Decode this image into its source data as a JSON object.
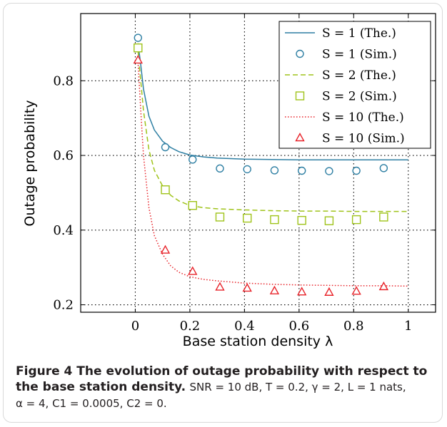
{
  "chart_data": {
    "type": "line",
    "title": "",
    "xlabel": "Base station density λ",
    "ylabel": "Outage probability",
    "xlim": [
      -0.2,
      1.1
    ],
    "ylim": [
      0.18,
      0.98
    ],
    "xticks": [
      "0",
      "0.2",
      "0.4",
      "0.6",
      "0.8",
      "1"
    ],
    "yticks": [
      "0.2",
      "0.4",
      "0.6",
      "0.8"
    ],
    "grid": true,
    "legend_position": "top-right",
    "series": [
      {
        "name": "S = 1 (The.)",
        "kind": "line",
        "style": "solid",
        "color": "#2e7fa3",
        "x": [
          0.01,
          0.02,
          0.03,
          0.05,
          0.07,
          0.1,
          0.13,
          0.16,
          0.2,
          0.25,
          0.3,
          0.4,
          0.5,
          0.6,
          0.7,
          0.8,
          0.9,
          1.0
        ],
        "y": [
          0.9,
          0.843,
          0.778,
          0.705,
          0.668,
          0.638,
          0.621,
          0.61,
          0.601,
          0.596,
          0.593,
          0.59,
          0.589,
          0.588,
          0.588,
          0.588,
          0.588,
          0.588
        ]
      },
      {
        "name": "S = 1 (Sim.)",
        "kind": "marker",
        "marker": "circle",
        "color": "#2e7fa3",
        "x": [
          0.01,
          0.11,
          0.21,
          0.31,
          0.41,
          0.51,
          0.61,
          0.71,
          0.81,
          0.91
        ],
        "y": [
          0.915,
          0.622,
          0.589,
          0.565,
          0.563,
          0.56,
          0.559,
          0.558,
          0.559,
          0.566
        ]
      },
      {
        "name": "S = 2 (The.)",
        "kind": "line",
        "style": "dashed",
        "color": "#9fc31a",
        "x": [
          0.01,
          0.02,
          0.03,
          0.05,
          0.07,
          0.1,
          0.13,
          0.16,
          0.2,
          0.25,
          0.3,
          0.4,
          0.5,
          0.6,
          0.7,
          0.8,
          0.9,
          1.0
        ],
        "y": [
          0.88,
          0.8,
          0.72,
          0.615,
          0.56,
          0.518,
          0.493,
          0.478,
          0.466,
          0.46,
          0.457,
          0.454,
          0.452,
          0.451,
          0.451,
          0.45,
          0.45,
          0.45
        ]
      },
      {
        "name": "S = 2 (Sim.)",
        "kind": "marker",
        "marker": "square",
        "color": "#9fc31a",
        "x": [
          0.01,
          0.11,
          0.21,
          0.31,
          0.41,
          0.51,
          0.61,
          0.71,
          0.81,
          0.91
        ],
        "y": [
          0.888,
          0.508,
          0.466,
          0.435,
          0.432,
          0.428,
          0.426,
          0.425,
          0.428,
          0.435
        ]
      },
      {
        "name": "S = 10 (The.)",
        "kind": "line",
        "style": "dotted",
        "color": "#e8232a",
        "x": [
          0.01,
          0.02,
          0.03,
          0.05,
          0.07,
          0.1,
          0.13,
          0.16,
          0.2,
          0.25,
          0.3,
          0.4,
          0.5,
          0.6,
          0.7,
          0.8,
          0.9,
          1.0
        ],
        "y": [
          0.85,
          0.72,
          0.6,
          0.46,
          0.385,
          0.335,
          0.304,
          0.287,
          0.275,
          0.268,
          0.264,
          0.258,
          0.255,
          0.253,
          0.252,
          0.251,
          0.251,
          0.25
        ]
      },
      {
        "name": "S = 10 (Sim.)",
        "kind": "marker",
        "marker": "triangle",
        "color": "#e8232a",
        "x": [
          0.01,
          0.11,
          0.21,
          0.31,
          0.41,
          0.51,
          0.61,
          0.71,
          0.81,
          0.91
        ],
        "y": [
          0.855,
          0.346,
          0.289,
          0.247,
          0.244,
          0.237,
          0.234,
          0.233,
          0.236,
          0.248
        ]
      }
    ]
  },
  "caption": {
    "bold": "Figure 4 The evolution of outage probability with respect to the base station density.",
    "line1_rest": "SNR = 10 dB, T = 0.2, γ = 2, L = 1 nats,",
    "line2": "α = 4, C1 = 0.0005, C2 = 0."
  }
}
